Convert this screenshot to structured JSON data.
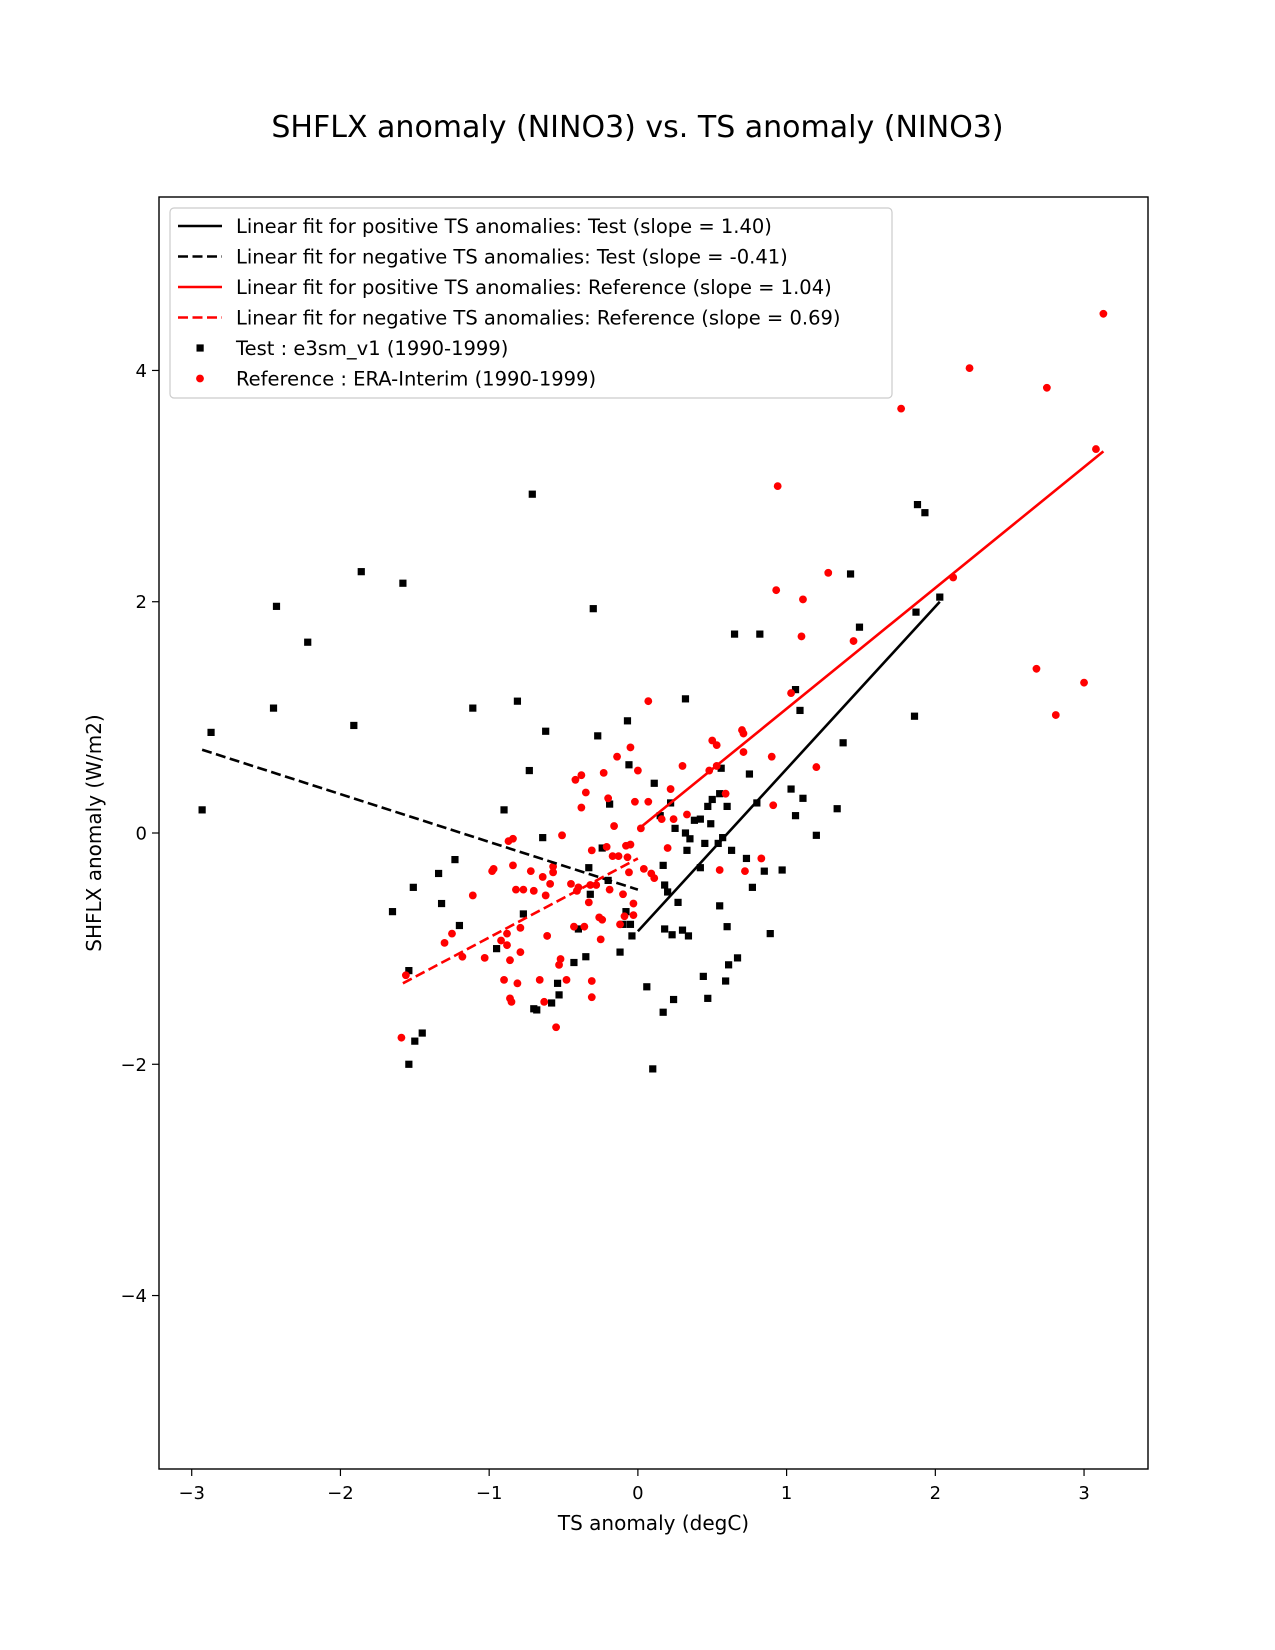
{
  "chart_data": {
    "type": "scatter",
    "title": "SHFLX anomaly (NINO3) vs. TS anomaly (NINO3)",
    "xlabel": "TS anomaly (degC)",
    "ylabel": "SHFLX anomaly (W/m2)",
    "xlim": [
      -3.22,
      3.43
    ],
    "ylim": [
      -5.5,
      5.5
    ],
    "xticks": [
      -3,
      -2,
      -1,
      0,
      1,
      2,
      3
    ],
    "yticks": [
      -4,
      -2,
      0,
      2,
      4
    ],
    "xtick_labels": [
      "−3",
      "−2",
      "−1",
      "0",
      "1",
      "2",
      "3"
    ],
    "ytick_labels": [
      "−4",
      "−2",
      "0",
      "2",
      "4"
    ],
    "legend_position": "upper-left",
    "fits": [
      {
        "label": "Linear fit for positive TS anomalies: Test (slope = 1.40)",
        "color": "#000000",
        "dashed": false,
        "x": [
          0.0,
          2.03
        ],
        "y": [
          -0.85,
          2.0
        ]
      },
      {
        "label": "Linear fit for negative TS anomalies: Test (slope = -0.41)",
        "color": "#000000",
        "dashed": true,
        "x": [
          -2.93,
          0.0
        ],
        "y": [
          0.72,
          -0.49
        ]
      },
      {
        "label": "Linear fit for positive TS anomalies: Reference (slope = 1.04)",
        "color": "#ff0000",
        "dashed": false,
        "x": [
          0.0,
          3.13
        ],
        "y": [
          0.03,
          3.3
        ]
      },
      {
        "label": "Linear fit for negative TS anomalies: Reference (slope = 0.69)",
        "color": "#ff0000",
        "dashed": true,
        "x": [
          -1.58,
          0.0
        ],
        "y": [
          -1.3,
          -0.22
        ]
      }
    ],
    "series": [
      {
        "name": "Test : e3sm_v1 (1990-1999)",
        "marker": "square",
        "color": "#000000",
        "points": [
          [
            -2.93,
            0.2
          ],
          [
            -2.87,
            0.87
          ],
          [
            -2.45,
            1.08
          ],
          [
            -2.43,
            1.96
          ],
          [
            -2.22,
            1.65
          ],
          [
            -1.91,
            0.93
          ],
          [
            -1.86,
            2.26
          ],
          [
            -1.58,
            2.16
          ],
          [
            -1.54,
            -1.19
          ],
          [
            -1.54,
            -2.0
          ],
          [
            -1.51,
            -0.47
          ],
          [
            -1.5,
            -1.8
          ],
          [
            -1.45,
            -1.73
          ],
          [
            -1.34,
            -0.35
          ],
          [
            -1.32,
            -0.61
          ],
          [
            -1.23,
            -0.23
          ],
          [
            -1.2,
            -0.8
          ],
          [
            -1.65,
            -0.68
          ],
          [
            -1.11,
            1.08
          ],
          [
            -0.95,
            -1.0
          ],
          [
            -0.9,
            0.2
          ],
          [
            -0.81,
            1.14
          ],
          [
            -0.77,
            -0.7
          ],
          [
            -0.73,
            0.54
          ],
          [
            -0.71,
            2.93
          ],
          [
            -0.7,
            -1.52
          ],
          [
            -0.68,
            -1.53
          ],
          [
            -0.64,
            -0.04
          ],
          [
            -0.62,
            0.88
          ],
          [
            -0.58,
            -1.47
          ],
          [
            -0.54,
            -1.3
          ],
          [
            -0.53,
            -1.4
          ],
          [
            -0.43,
            -1.12
          ],
          [
            -0.4,
            -0.83
          ],
          [
            -0.35,
            -1.07
          ],
          [
            -0.33,
            -0.3
          ],
          [
            -0.32,
            -0.53
          ],
          [
            -0.3,
            1.94
          ],
          [
            -0.27,
            0.84
          ],
          [
            -0.24,
            -0.13
          ],
          [
            -0.2,
            -0.41
          ],
          [
            -0.19,
            0.25
          ],
          [
            -0.12,
            -1.03
          ],
          [
            -0.1,
            -0.79
          ],
          [
            -0.08,
            -0.68
          ],
          [
            -0.07,
            0.97
          ],
          [
            -0.06,
            0.59
          ],
          [
            -0.04,
            -0.89
          ],
          [
            -0.05,
            -0.79
          ],
          [
            0.06,
            -1.33
          ],
          [
            0.1,
            -2.04
          ],
          [
            0.11,
            0.43
          ],
          [
            0.15,
            0.15
          ],
          [
            0.17,
            -0.28
          ],
          [
            0.17,
            -1.55
          ],
          [
            0.18,
            -0.83
          ],
          [
            0.18,
            -0.45
          ],
          [
            0.2,
            -0.51
          ],
          [
            0.22,
            0.26
          ],
          [
            0.23,
            -0.88
          ],
          [
            0.24,
            -1.44
          ],
          [
            0.25,
            0.04
          ],
          [
            0.27,
            -0.6
          ],
          [
            0.3,
            -0.84
          ],
          [
            0.32,
            1.16
          ],
          [
            0.32,
            0.0
          ],
          [
            0.33,
            -0.15
          ],
          [
            0.34,
            -0.89
          ],
          [
            0.35,
            -0.05
          ],
          [
            0.38,
            0.11
          ],
          [
            0.42,
            0.12
          ],
          [
            0.42,
            -0.3
          ],
          [
            0.44,
            -1.24
          ],
          [
            0.45,
            -0.09
          ],
          [
            0.47,
            -1.43
          ],
          [
            0.47,
            0.23
          ],
          [
            0.49,
            0.08
          ],
          [
            0.5,
            0.29
          ],
          [
            0.54,
            -0.09
          ],
          [
            0.55,
            -0.63
          ],
          [
            0.55,
            0.34
          ],
          [
            0.56,
            0.56
          ],
          [
            0.57,
            -0.04
          ],
          [
            0.59,
            -1.28
          ],
          [
            0.6,
            -0.81
          ],
          [
            0.61,
            -1.14
          ],
          [
            0.6,
            0.23
          ],
          [
            0.63,
            -0.15
          ],
          [
            0.65,
            1.72
          ],
          [
            0.67,
            -1.08
          ],
          [
            0.73,
            -0.22
          ],
          [
            0.75,
            0.51
          ],
          [
            0.77,
            -0.47
          ],
          [
            0.8,
            0.26
          ],
          [
            0.82,
            1.72
          ],
          [
            0.85,
            -0.33
          ],
          [
            0.89,
            -0.87
          ],
          [
            0.97,
            -0.32
          ],
          [
            1.03,
            0.38
          ],
          [
            1.06,
            1.24
          ],
          [
            1.06,
            0.15
          ],
          [
            1.09,
            1.06
          ],
          [
            1.11,
            0.3
          ],
          [
            1.2,
            -0.02
          ],
          [
            1.34,
            0.21
          ],
          [
            1.38,
            0.78
          ],
          [
            1.43,
            2.24
          ],
          [
            1.49,
            1.78
          ],
          [
            1.86,
            1.01
          ],
          [
            1.87,
            1.91
          ],
          [
            1.88,
            2.84
          ],
          [
            1.93,
            2.77
          ],
          [
            2.03,
            2.04
          ]
        ]
      },
      {
        "name": "Reference : ERA-Interim (1990-1999)",
        "marker": "circle",
        "color": "#ff0000",
        "points": [
          [
            -1.59,
            -1.77
          ],
          [
            -1.56,
            -1.23
          ],
          [
            -1.3,
            -0.95
          ],
          [
            -1.25,
            -0.87
          ],
          [
            -1.18,
            -1.07
          ],
          [
            -1.11,
            -0.54
          ],
          [
            -1.03,
            -1.08
          ],
          [
            -0.98,
            -0.33
          ],
          [
            -0.97,
            -0.31
          ],
          [
            -0.92,
            -0.93
          ],
          [
            -0.9,
            -1.27
          ],
          [
            -0.88,
            -0.87
          ],
          [
            -0.88,
            -0.97
          ],
          [
            -0.87,
            -0.07
          ],
          [
            -0.86,
            -1.1
          ],
          [
            -0.86,
            -1.43
          ],
          [
            -0.85,
            -1.46
          ],
          [
            -0.84,
            -0.28
          ],
          [
            -0.84,
            -0.05
          ],
          [
            -0.82,
            -0.49
          ],
          [
            -0.81,
            -1.3
          ],
          [
            -0.79,
            -1.03
          ],
          [
            -0.79,
            -0.82
          ],
          [
            -0.77,
            -0.49
          ],
          [
            -0.72,
            -0.33
          ],
          [
            -0.7,
            -0.5
          ],
          [
            -0.66,
            -1.27
          ],
          [
            -0.64,
            -0.38
          ],
          [
            -0.63,
            -1.46
          ],
          [
            -0.62,
            -0.54
          ],
          [
            -0.61,
            -0.89
          ],
          [
            -0.59,
            -0.44
          ],
          [
            -0.57,
            -0.34
          ],
          [
            -0.57,
            -0.29
          ],
          [
            -0.55,
            -1.68
          ],
          [
            -0.53,
            -1.14
          ],
          [
            -0.52,
            -1.09
          ],
          [
            -0.51,
            -0.02
          ],
          [
            -0.48,
            -1.27
          ],
          [
            -0.45,
            -0.44
          ],
          [
            -0.43,
            -0.81
          ],
          [
            -0.42,
            0.46
          ],
          [
            -0.41,
            -0.5
          ],
          [
            -0.4,
            -0.47
          ],
          [
            -0.38,
            0.5
          ],
          [
            -0.38,
            0.22
          ],
          [
            -0.36,
            -0.81
          ],
          [
            -0.35,
            0.35
          ],
          [
            -0.33,
            -0.6
          ],
          [
            -0.32,
            -0.45
          ],
          [
            -0.31,
            -1.28
          ],
          [
            -0.31,
            -1.42
          ],
          [
            -0.31,
            -0.15
          ],
          [
            -0.28,
            -0.45
          ],
          [
            -0.26,
            -0.73
          ],
          [
            -0.25,
            -0.92
          ],
          [
            -0.24,
            -0.75
          ],
          [
            -0.23,
            0.52
          ],
          [
            -0.21,
            -0.12
          ],
          [
            -0.2,
            0.3
          ],
          [
            -0.19,
            -0.49
          ],
          [
            -0.17,
            -0.2
          ],
          [
            -0.16,
            0.06
          ],
          [
            -0.14,
            0.66
          ],
          [
            -0.13,
            -0.2
          ],
          [
            -0.12,
            -0.79
          ],
          [
            -0.1,
            -0.53
          ],
          [
            -0.09,
            -0.72
          ],
          [
            -0.08,
            -0.11
          ],
          [
            -0.07,
            -0.21
          ],
          [
            -0.06,
            -0.34
          ],
          [
            -0.05,
            -0.1
          ],
          [
            -0.05,
            0.74
          ],
          [
            -0.03,
            -0.61
          ],
          [
            -0.03,
            -0.71
          ],
          [
            -0.02,
            0.27
          ],
          [
            0.0,
            0.54
          ],
          [
            0.02,
            0.04
          ],
          [
            0.04,
            -0.31
          ],
          [
            0.07,
            0.27
          ],
          [
            0.07,
            1.14
          ],
          [
            0.09,
            -0.35
          ],
          [
            0.11,
            -0.39
          ],
          [
            0.16,
            0.12
          ],
          [
            0.2,
            -0.13
          ],
          [
            0.22,
            0.38
          ],
          [
            0.24,
            0.12
          ],
          [
            0.3,
            0.58
          ],
          [
            0.33,
            0.16
          ],
          [
            0.48,
            0.54
          ],
          [
            0.5,
            0.8
          ],
          [
            0.53,
            0.76
          ],
          [
            0.53,
            0.58
          ],
          [
            0.55,
            -0.32
          ],
          [
            0.59,
            0.34
          ],
          [
            0.7,
            0.89
          ],
          [
            0.71,
            0.7
          ],
          [
            0.71,
            0.86
          ],
          [
            0.72,
            -0.33
          ],
          [
            0.83,
            -0.22
          ],
          [
            0.9,
            0.66
          ],
          [
            0.91,
            0.24
          ],
          [
            0.93,
            2.1
          ],
          [
            0.94,
            3.0
          ],
          [
            1.03,
            1.21
          ],
          [
            1.1,
            1.7
          ],
          [
            1.11,
            2.02
          ],
          [
            1.2,
            0.57
          ],
          [
            1.28,
            2.25
          ],
          [
            1.45,
            1.66
          ],
          [
            1.77,
            3.67
          ],
          [
            2.12,
            2.21
          ],
          [
            2.23,
            4.02
          ],
          [
            2.68,
            1.42
          ],
          [
            2.75,
            3.85
          ],
          [
            2.81,
            1.02
          ],
          [
            3.0,
            1.3
          ],
          [
            3.08,
            3.32
          ],
          [
            3.13,
            4.49
          ]
        ]
      }
    ]
  }
}
